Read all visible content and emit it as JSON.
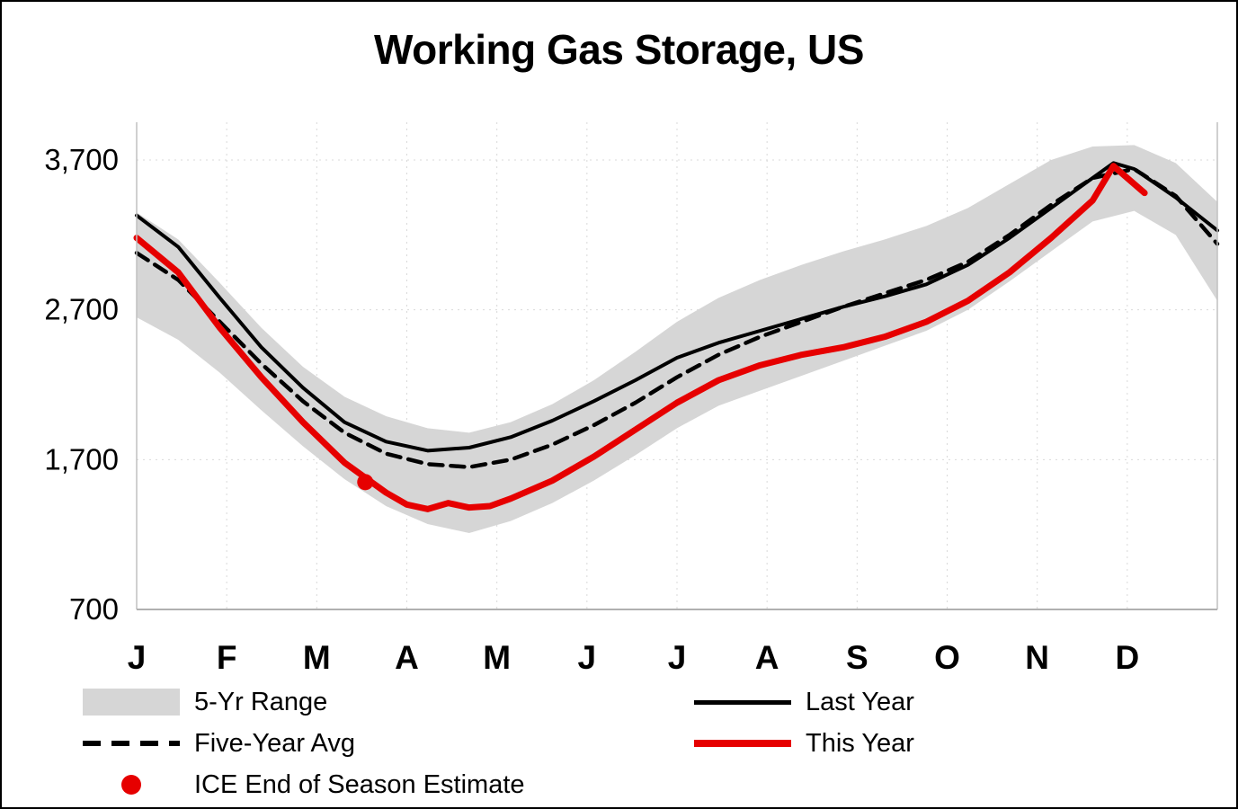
{
  "chart_data": {
    "type": "line",
    "title": "Working Gas Storage, US",
    "x_unit": "week-of-year",
    "x_range": [
      0,
      52
    ],
    "ylim": [
      700,
      3950
    ],
    "yticks": [
      700,
      1700,
      2700,
      3700
    ],
    "ytick_labels": [
      "700",
      "1,700",
      "2,700",
      "3,700"
    ],
    "month_labels": [
      "J",
      "F",
      "M",
      "A",
      "M",
      "J",
      "J",
      "A",
      "S",
      "O",
      "N",
      "D"
    ],
    "grid": true,
    "legend_position": "bottom",
    "band": {
      "name": "5-Yr Range",
      "color": "#d6d6d6",
      "x": [
        0,
        2,
        4,
        6,
        8,
        10,
        12,
        14,
        16,
        18,
        20,
        22,
        24,
        26,
        28,
        30,
        32,
        34,
        36,
        38,
        40,
        42,
        44,
        46,
        48,
        50,
        52
      ],
      "upper": [
        3350,
        3170,
        2880,
        2580,
        2320,
        2120,
        1990,
        1910,
        1880,
        1950,
        2070,
        2230,
        2420,
        2620,
        2780,
        2900,
        3000,
        3090,
        3170,
        3260,
        3380,
        3540,
        3700,
        3790,
        3800,
        3680,
        3420
      ],
      "lower": [
        2650,
        2500,
        2280,
        2030,
        1790,
        1570,
        1390,
        1270,
        1210,
        1290,
        1410,
        1560,
        1730,
        1910,
        2060,
        2160,
        2260,
        2360,
        2460,
        2560,
        2700,
        2890,
        3090,
        3290,
        3360,
        3200,
        2760
      ]
    },
    "series": [
      {
        "name": "Last Year",
        "color": "#000000",
        "style": "solid",
        "width": 4,
        "x": [
          0,
          2,
          4,
          6,
          8,
          10,
          12,
          14,
          16,
          18,
          20,
          22,
          24,
          26,
          28,
          30,
          32,
          34,
          36,
          38,
          40,
          42,
          44,
          46,
          47,
          48,
          50,
          52
        ],
        "values": [
          3330,
          3120,
          2780,
          2450,
          2180,
          1950,
          1820,
          1760,
          1780,
          1850,
          1960,
          2090,
          2230,
          2380,
          2480,
          2560,
          2640,
          2720,
          2790,
          2870,
          3000,
          3180,
          3380,
          3580,
          3680,
          3640,
          3450,
          3230
        ]
      },
      {
        "name": "Five-Year Avg",
        "color": "#000000",
        "style": "dashed",
        "width": 4.5,
        "x": [
          0,
          2,
          4,
          6,
          8,
          10,
          12,
          14,
          16,
          18,
          20,
          22,
          24,
          26,
          28,
          30,
          32,
          34,
          36,
          38,
          40,
          42,
          44,
          46,
          48,
          50,
          52
        ],
        "values": [
          3080,
          2900,
          2620,
          2340,
          2090,
          1880,
          1740,
          1670,
          1650,
          1700,
          1800,
          1930,
          2080,
          2250,
          2400,
          2520,
          2620,
          2720,
          2810,
          2900,
          3020,
          3200,
          3400,
          3580,
          3640,
          3460,
          3140
        ]
      },
      {
        "name": "This Year",
        "color": "#e60000",
        "style": "solid",
        "width": 7,
        "x": [
          0,
          2,
          4,
          6,
          8,
          10,
          12,
          13,
          14,
          15,
          16,
          17,
          18,
          20,
          22,
          24,
          26,
          28,
          30,
          32,
          34,
          36,
          38,
          40,
          42,
          44,
          46,
          47,
          48.5
        ],
        "values": [
          3180,
          2950,
          2580,
          2250,
          1950,
          1680,
          1480,
          1400,
          1370,
          1410,
          1380,
          1390,
          1440,
          1560,
          1720,
          1900,
          2080,
          2230,
          2330,
          2400,
          2450,
          2520,
          2620,
          2760,
          2950,
          3180,
          3430,
          3660,
          3480
        ]
      }
    ],
    "marker": {
      "name": "ICE End of Season Estimate",
      "color": "#e60000",
      "x": 11,
      "value": 1550
    }
  }
}
